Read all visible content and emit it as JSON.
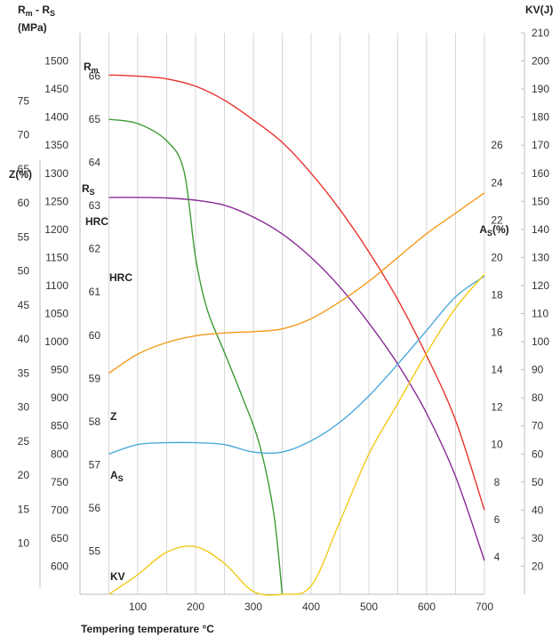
{
  "chart_data": {
    "type": "line",
    "xlabel": "Tempering temperature °C",
    "x_ticks": [
      100,
      200,
      300,
      400,
      500,
      600,
      700
    ],
    "xlim": [
      0,
      700
    ],
    "grid": "vertical",
    "axes": {
      "rm_rs": {
        "title_main": "R",
        "title_sub1": "m",
        "title_mid": " - R",
        "title_sub2": "S",
        "unit": "(MPa)",
        "range": [
          550,
          1550
        ],
        "ticks": [
          600,
          650,
          700,
          750,
          800,
          850,
          900,
          950,
          1000,
          1050,
          1100,
          1150,
          1200,
          1250,
          1300,
          1350,
          1400,
          1450,
          1500
        ]
      },
      "z": {
        "title": "Z(%)",
        "range": [
          2.5,
          85
        ],
        "ticks": [
          10,
          15,
          20,
          25,
          30,
          35,
          40,
          45,
          50,
          55,
          60,
          65,
          70,
          75
        ]
      },
      "hrc": {
        "title": "HRC",
        "range": [
          54,
          67
        ],
        "ticks": [
          55,
          56,
          57,
          58,
          59,
          60,
          61,
          62,
          63,
          64,
          65,
          66
        ]
      },
      "as": {
        "title_main": "A",
        "title_sub": "S",
        "title_tail": "(%)",
        "range": [
          2,
          32
        ],
        "ticks": [
          4,
          6,
          8,
          10,
          12,
          14,
          16,
          18,
          20,
          22,
          24,
          26
        ]
      },
      "kv": {
        "title": "KV(J)",
        "range": [
          10,
          210
        ],
        "ticks": [
          20,
          30,
          40,
          50,
          60,
          70,
          80,
          90,
          100,
          110,
          120,
          130,
          140,
          150,
          160,
          170,
          180,
          190,
          200,
          210
        ]
      }
    },
    "series": [
      {
        "name": "Rm",
        "label_main": "R",
        "label_sub": "m",
        "axis": "rm_rs",
        "color": "#e8322c",
        "points": [
          [
            50,
            1475
          ],
          [
            100,
            1473
          ],
          [
            150,
            1468
          ],
          [
            200,
            1455
          ],
          [
            250,
            1430
          ],
          [
            300,
            1395
          ],
          [
            350,
            1355
          ],
          [
            400,
            1300
          ],
          [
            450,
            1235
          ],
          [
            500,
            1160
          ],
          [
            550,
            1075
          ],
          [
            600,
            975
          ],
          [
            650,
            860
          ],
          [
            700,
            700
          ]
        ]
      },
      {
        "name": "Rs",
        "label_main": "R",
        "label_sub": "S",
        "axis": "rm_rs",
        "color": "#8a2a96",
        "points": [
          [
            50,
            1257
          ],
          [
            100,
            1257
          ],
          [
            150,
            1256
          ],
          [
            200,
            1252
          ],
          [
            250,
            1243
          ],
          [
            300,
            1222
          ],
          [
            350,
            1192
          ],
          [
            400,
            1150
          ],
          [
            450,
            1097
          ],
          [
            500,
            1033
          ],
          [
            550,
            960
          ],
          [
            600,
            872
          ],
          [
            650,
            760
          ],
          [
            700,
            610
          ]
        ]
      },
      {
        "name": "HRC",
        "label": "HRC",
        "axis": "hrc",
        "color": "#3e9a35",
        "points": [
          [
            50,
            65
          ],
          [
            100,
            64.9
          ],
          [
            150,
            64.5
          ],
          [
            180,
            63.8
          ],
          [
            200,
            61.8
          ],
          [
            220,
            60.6
          ],
          [
            250,
            59.6
          ],
          [
            280,
            58.6
          ],
          [
            310,
            57.5
          ],
          [
            335,
            55.9
          ],
          [
            350,
            54
          ]
        ]
      },
      {
        "name": "Z",
        "label": "Z",
        "axis": "z",
        "color": "#f39b1b",
        "points": [
          [
            50,
            35
          ],
          [
            100,
            37.8
          ],
          [
            150,
            39.5
          ],
          [
            200,
            40.5
          ],
          [
            250,
            40.9
          ],
          [
            300,
            41.1
          ],
          [
            350,
            41.5
          ],
          [
            400,
            43
          ],
          [
            450,
            45.5
          ],
          [
            500,
            48.5
          ],
          [
            550,
            52
          ],
          [
            600,
            55.5
          ],
          [
            650,
            58.5
          ],
          [
            700,
            61.5
          ]
        ]
      },
      {
        "name": "As",
        "label_main": "A",
        "label_sub": "S",
        "axis": "as",
        "color": "#4aa9d9",
        "points": [
          [
            50,
            9.5
          ],
          [
            100,
            10
          ],
          [
            150,
            10.1
          ],
          [
            200,
            10.1
          ],
          [
            250,
            10
          ],
          [
            300,
            9.6
          ],
          [
            350,
            9.6
          ],
          [
            400,
            10.2
          ],
          [
            450,
            11.2
          ],
          [
            500,
            12.6
          ],
          [
            550,
            14.3
          ],
          [
            600,
            16.1
          ],
          [
            650,
            17.9
          ],
          [
            700,
            19
          ]
        ]
      },
      {
        "name": "KV",
        "label": "KV",
        "axis": "kv",
        "color": "#f2c918",
        "points": [
          [
            50,
            10
          ],
          [
            100,
            17
          ],
          [
            150,
            25
          ],
          [
            200,
            27
          ],
          [
            250,
            21
          ],
          [
            300,
            11
          ],
          [
            350,
            6
          ],
          [
            400,
            13
          ],
          [
            450,
            36
          ],
          [
            500,
            60
          ],
          [
            550,
            78
          ],
          [
            600,
            96
          ],
          [
            650,
            112
          ],
          [
            700,
            124
          ]
        ]
      }
    ]
  }
}
